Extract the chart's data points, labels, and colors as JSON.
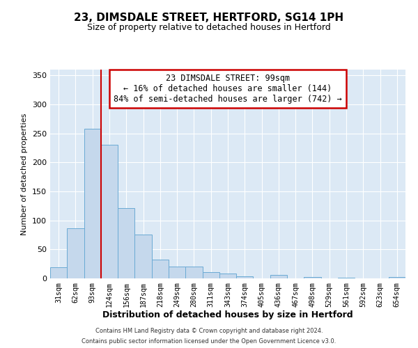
{
  "title": "23, DIMSDALE STREET, HERTFORD, SG14 1PH",
  "subtitle": "Size of property relative to detached houses in Hertford",
  "xlabel": "Distribution of detached houses by size in Hertford",
  "ylabel": "Number of detached properties",
  "footer_line1": "Contains HM Land Registry data © Crown copyright and database right 2024.",
  "footer_line2": "Contains public sector information licensed under the Open Government Licence v3.0.",
  "bar_labels": [
    "31sqm",
    "62sqm",
    "93sqm",
    "124sqm",
    "156sqm",
    "187sqm",
    "218sqm",
    "249sqm",
    "280sqm",
    "311sqm",
    "343sqm",
    "374sqm",
    "405sqm",
    "436sqm",
    "467sqm",
    "498sqm",
    "529sqm",
    "561sqm",
    "592sqm",
    "623sqm",
    "654sqm"
  ],
  "bar_values": [
    19,
    86,
    258,
    230,
    121,
    76,
    33,
    20,
    20,
    11,
    9,
    4,
    0,
    6,
    0,
    2,
    0,
    1,
    0,
    0,
    3
  ],
  "bar_color": "#c5d8ec",
  "bar_edge_color": "#6aaad4",
  "vline_color": "#cc0000",
  "ylim": [
    0,
    360
  ],
  "yticks": [
    0,
    50,
    100,
    150,
    200,
    250,
    300,
    350
  ],
  "annotation_title": "23 DIMSDALE STREET: 99sqm",
  "annotation_line1": "← 16% of detached houses are smaller (144)",
  "annotation_line2": "84% of semi-detached houses are larger (742) →",
  "annotation_box_color": "#ffffff",
  "annotation_box_edge_color": "#cc0000",
  "bg_color": "#ffffff",
  "plot_bg_color": "#dce9f5",
  "grid_color": "#ffffff",
  "title_fontsize": 11,
  "subtitle_fontsize": 9
}
